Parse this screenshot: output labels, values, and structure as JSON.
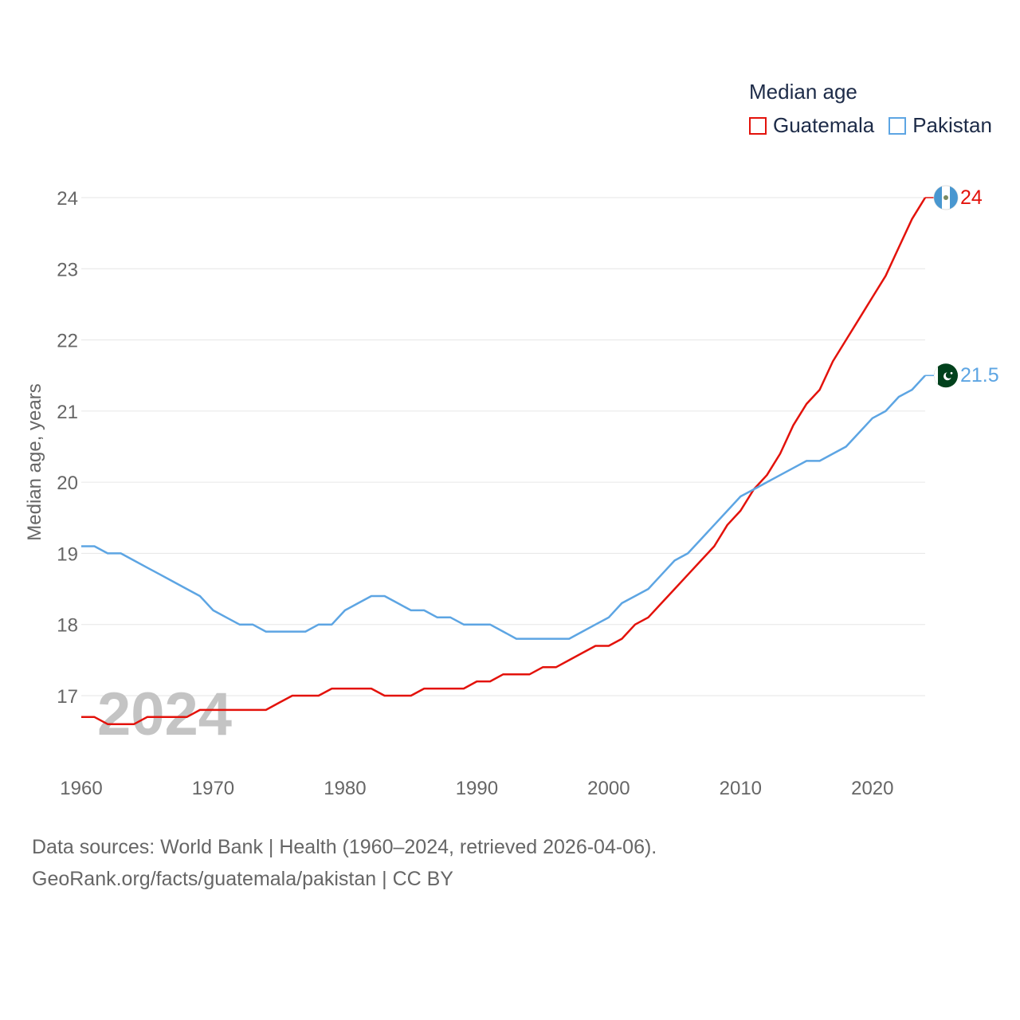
{
  "legend": {
    "title": "Median age",
    "items": [
      {
        "label": "Guatemala",
        "color": "#e3120b"
      },
      {
        "label": "Pakistan",
        "color": "#5da5e3"
      }
    ]
  },
  "year_watermark": "2024",
  "sources": {
    "line1": "Data sources: World Bank | Health (1960–2024, retrieved 2026-04-06).",
    "line2": "GeoRank.org/facts/guatemala/pakistan | CC BY"
  },
  "chart_data": {
    "type": "line",
    "title": "Median age",
    "xlabel": "",
    "ylabel": "Median age, years",
    "xlim": [
      1960,
      2024
    ],
    "ylim": [
      16.2,
      24.5
    ],
    "x_ticks": [
      1960,
      1970,
      1980,
      1990,
      2000,
      2010,
      2020
    ],
    "y_ticks": [
      17,
      18,
      19,
      20,
      21,
      22,
      23,
      24
    ],
    "grid": true,
    "x": [
      1960,
      1961,
      1962,
      1963,
      1964,
      1965,
      1966,
      1967,
      1968,
      1969,
      1970,
      1971,
      1972,
      1973,
      1974,
      1975,
      1976,
      1977,
      1978,
      1979,
      1980,
      1981,
      1982,
      1983,
      1984,
      1985,
      1986,
      1987,
      1988,
      1989,
      1990,
      1991,
      1992,
      1993,
      1994,
      1995,
      1996,
      1997,
      1998,
      1999,
      2000,
      2001,
      2002,
      2003,
      2004,
      2005,
      2006,
      2007,
      2008,
      2009,
      2010,
      2011,
      2012,
      2013,
      2014,
      2015,
      2016,
      2017,
      2018,
      2019,
      2020,
      2021,
      2022,
      2023,
      2024
    ],
    "series": [
      {
        "name": "Guatemala",
        "color": "#e3120b",
        "end_label": "24",
        "flag": "guatemala-flag-icon",
        "values": [
          16.7,
          16.7,
          16.6,
          16.6,
          16.6,
          16.7,
          16.7,
          16.7,
          16.7,
          16.8,
          16.8,
          16.8,
          16.8,
          16.8,
          16.8,
          16.9,
          17.0,
          17.0,
          17.0,
          17.1,
          17.1,
          17.1,
          17.1,
          17.0,
          17.0,
          17.0,
          17.1,
          17.1,
          17.1,
          17.1,
          17.2,
          17.2,
          17.3,
          17.3,
          17.3,
          17.4,
          17.4,
          17.5,
          17.6,
          17.7,
          17.7,
          17.8,
          18.0,
          18.1,
          18.3,
          18.5,
          18.7,
          18.9,
          19.1,
          19.4,
          19.6,
          19.9,
          20.1,
          20.4,
          20.8,
          21.1,
          21.3,
          21.7,
          22.0,
          22.3,
          22.6,
          22.9,
          23.3,
          23.7,
          24.0
        ]
      },
      {
        "name": "Pakistan",
        "color": "#5da5e3",
        "end_label": "21.5",
        "flag": "pakistan-flag-icon",
        "values": [
          19.1,
          19.1,
          19.0,
          19.0,
          18.9,
          18.8,
          18.7,
          18.6,
          18.5,
          18.4,
          18.2,
          18.1,
          18.0,
          18.0,
          17.9,
          17.9,
          17.9,
          17.9,
          18.0,
          18.0,
          18.2,
          18.3,
          18.4,
          18.4,
          18.3,
          18.2,
          18.2,
          18.1,
          18.1,
          18.0,
          18.0,
          18.0,
          17.9,
          17.8,
          17.8,
          17.8,
          17.8,
          17.8,
          17.9,
          18.0,
          18.1,
          18.3,
          18.4,
          18.5,
          18.7,
          18.9,
          19.0,
          19.2,
          19.4,
          19.6,
          19.8,
          19.9,
          20.0,
          20.1,
          20.2,
          20.3,
          20.3,
          20.4,
          20.5,
          20.7,
          20.9,
          21.0,
          21.2,
          21.3,
          21.5
        ]
      }
    ]
  }
}
